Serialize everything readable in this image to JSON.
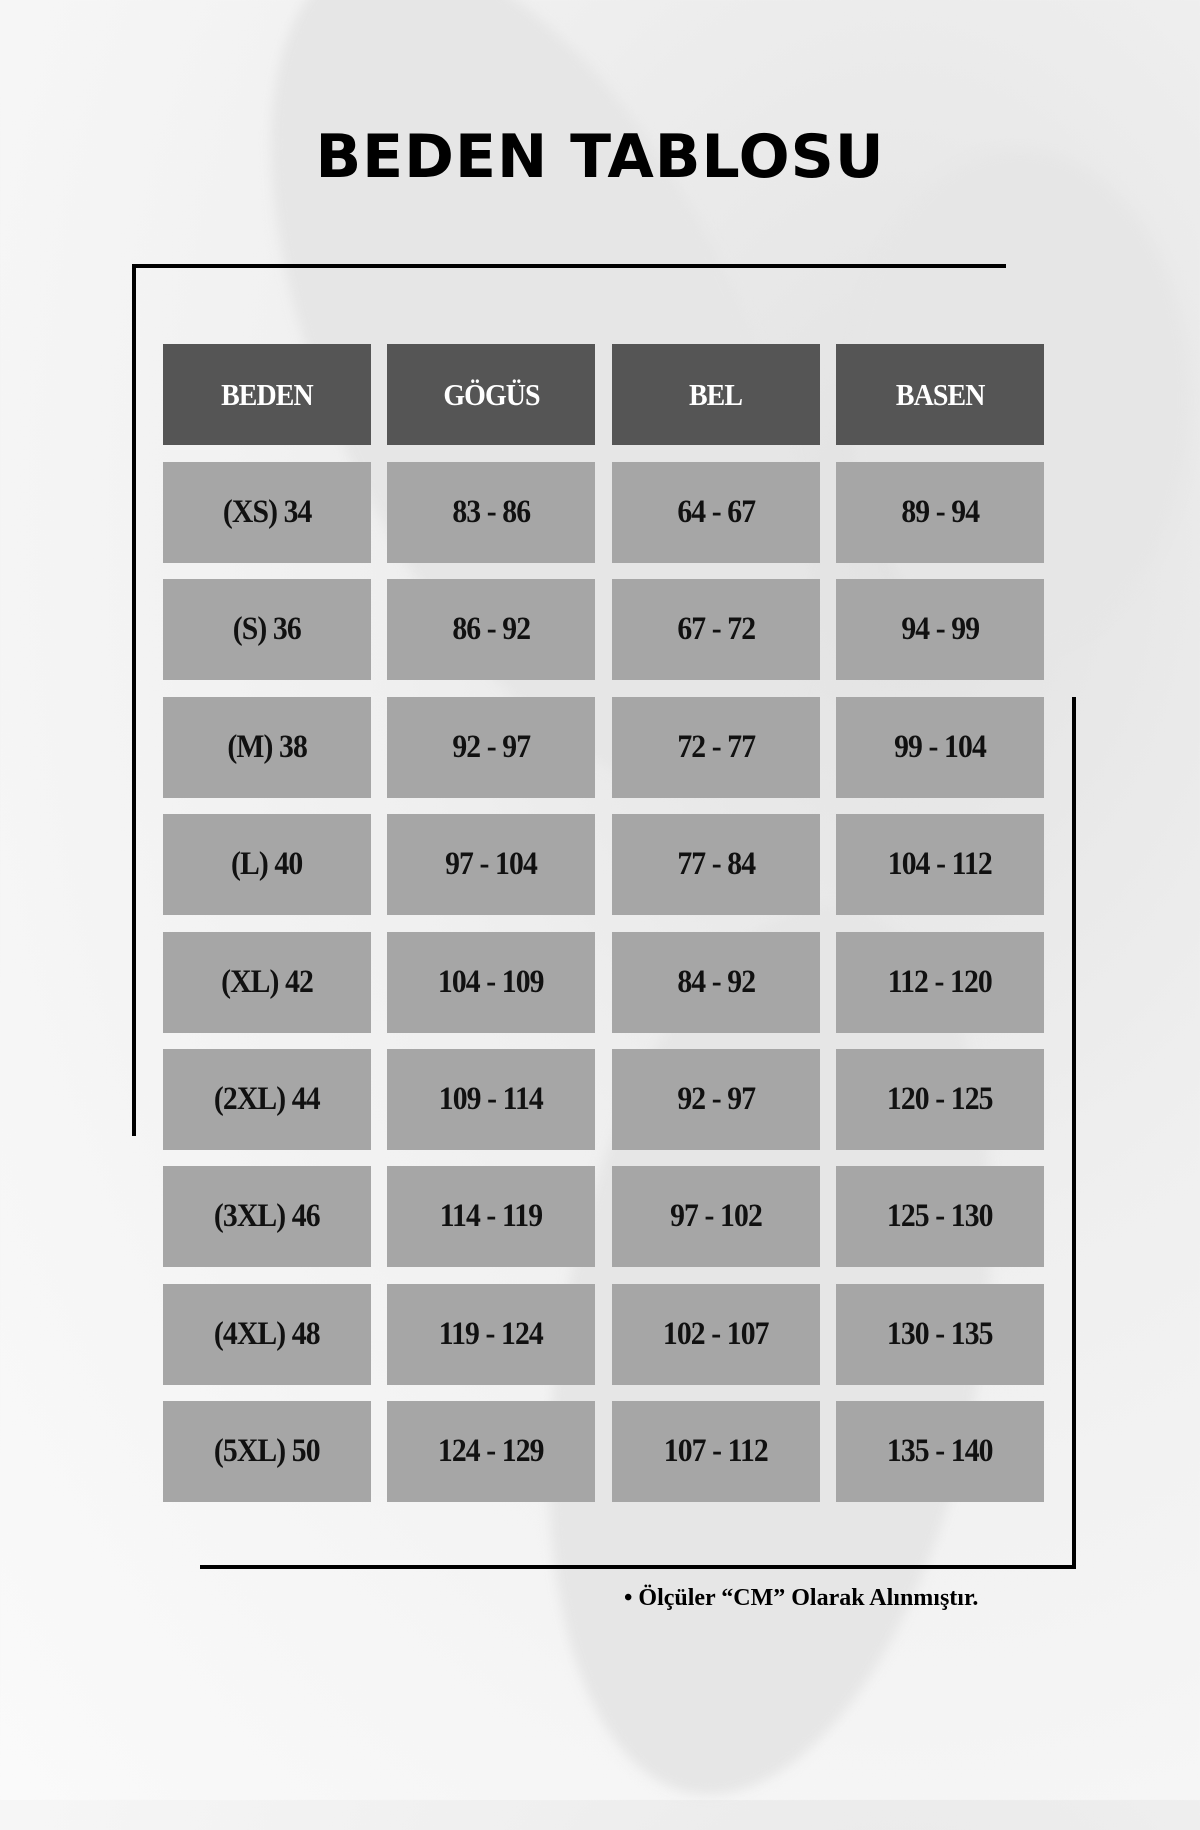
{
  "title": "BEDEN TABLOSU",
  "table": {
    "headers": [
      "BEDEN",
      "GÖGÜS",
      "BEL",
      "BASEN"
    ],
    "rows": [
      [
        "(XS) 34",
        "83 - 86",
        "64 - 67",
        "89 - 94"
      ],
      [
        "(S) 36",
        "86 - 92",
        "67 - 72",
        "94 - 99"
      ],
      [
        "(M) 38",
        "92 - 97",
        "72 - 77",
        "99 - 104"
      ],
      [
        "(L) 40",
        "97 - 104",
        "77 - 84",
        "104 - 112"
      ],
      [
        "(XL) 42",
        "104 - 109",
        "84 - 92",
        "112 - 120"
      ],
      [
        "(2XL) 44",
        "109 - 114",
        "92 - 97",
        "120 - 125"
      ],
      [
        "(3XL) 46",
        "114 - 119",
        "97 - 102",
        "125 - 130"
      ],
      [
        "(4XL) 48",
        "119 - 124",
        "102 - 107",
        "130 - 135"
      ],
      [
        "(5XL) 50",
        "124 - 129",
        "107 - 112",
        "135 - 140"
      ]
    ]
  },
  "note": "• Ölçüler “CM” Olarak Alınmıştır.",
  "colors": {
    "header_bg": "#555555",
    "cell_bg": "#a6a6a6",
    "text": "#111111"
  }
}
